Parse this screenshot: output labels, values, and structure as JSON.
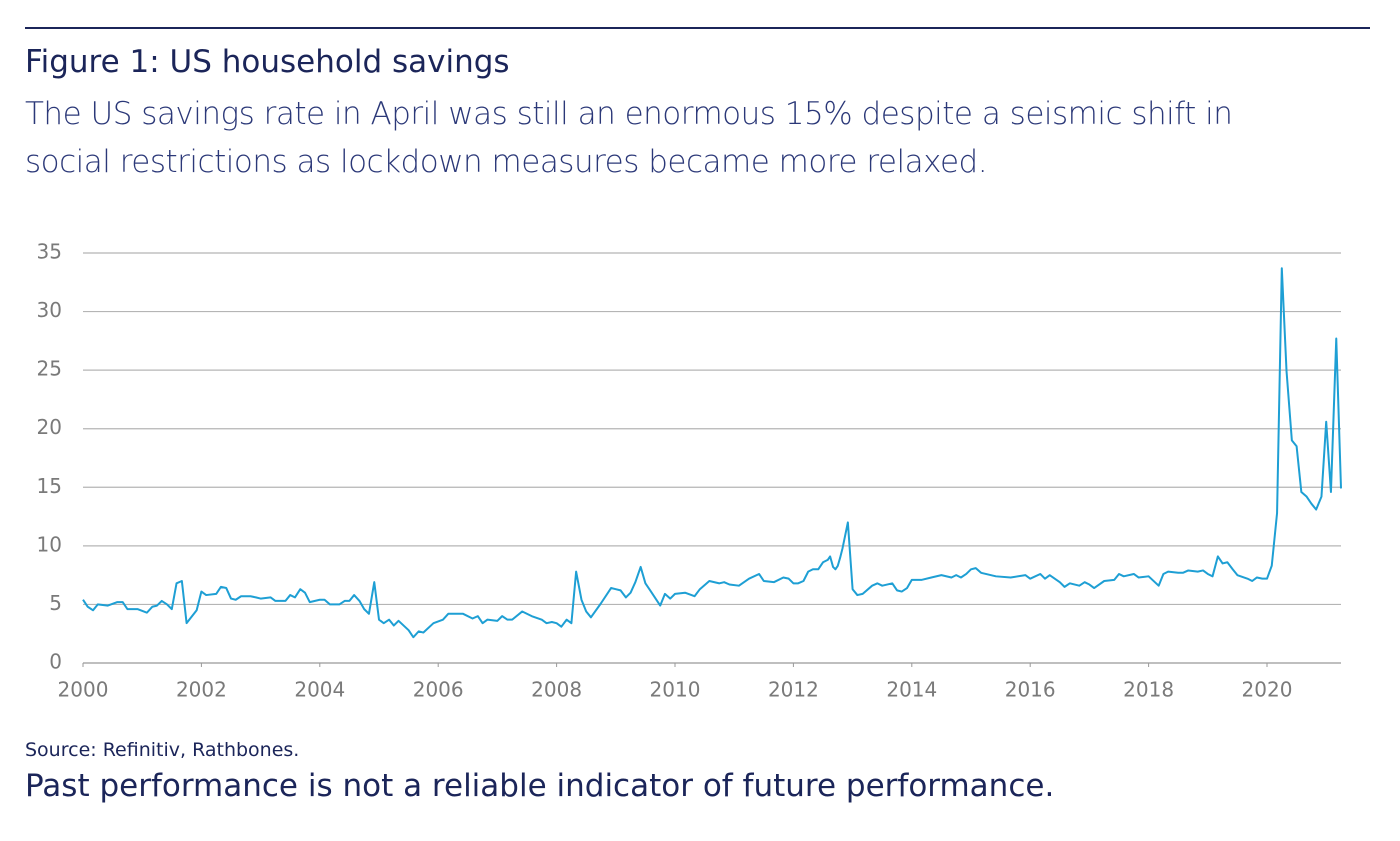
{
  "chart_data": {
    "type": "line",
    "title": "Figure 1: US household savings",
    "subtitle": "The US savings rate in April was still an enormous 15% despite a seismic shift in social restrictions as lockdown measures became more relaxed.",
    "source": "Source: Refinitiv, Rathbones.",
    "disclaimer": "Past performance is not a reliable indicator of future performance.",
    "color": "#1e9fd4",
    "grid": true,
    "xlim": [
      2000,
      2021.25
    ],
    "ylim": [
      0,
      35
    ],
    "xticks": [
      2000,
      2002,
      2004,
      2006,
      2008,
      2010,
      2012,
      2014,
      2016,
      2018,
      2020
    ],
    "yticks": [
      0,
      5,
      10,
      15,
      20,
      25,
      30,
      35
    ],
    "x": [
      2000.0,
      2000.08,
      2000.17,
      2000.25,
      2000.42,
      2000.58,
      2000.67,
      2000.75,
      2000.92,
      2001.08,
      2001.17,
      2001.25,
      2001.33,
      2001.42,
      2001.5,
      2001.58,
      2001.67,
      2001.75,
      2001.92,
      2002.0,
      2002.08,
      2002.25,
      2002.33,
      2002.42,
      2002.5,
      2002.58,
      2002.67,
      2002.83,
      2002.92,
      2003.0,
      2003.17,
      2003.25,
      2003.42,
      2003.5,
      2003.58,
      2003.67,
      2003.75,
      2003.83,
      2004.0,
      2004.08,
      2004.17,
      2004.33,
      2004.42,
      2004.5,
      2004.58,
      2004.67,
      2004.75,
      2004.83,
      2004.92,
      2005.0,
      2005.08,
      2005.17,
      2005.25,
      2005.33,
      2005.5,
      2005.58,
      2005.67,
      2005.75,
      2005.92,
      2006.08,
      2006.17,
      2006.42,
      2006.58,
      2006.67,
      2006.75,
      2006.83,
      2007.0,
      2007.08,
      2007.17,
      2007.25,
      2007.42,
      2007.58,
      2007.75,
      2007.83,
      2007.92,
      2008.0,
      2008.08,
      2008.17,
      2008.25,
      2008.33,
      2008.42,
      2008.5,
      2008.58,
      2008.75,
      2008.92,
      2009.0,
      2009.08,
      2009.17,
      2009.25,
      2009.33,
      2009.42,
      2009.5,
      2009.58,
      2009.75,
      2009.83,
      2009.92,
      2010.0,
      2010.17,
      2010.33,
      2010.42,
      2010.58,
      2010.75,
      2010.83,
      2010.92,
      2011.08,
      2011.25,
      2011.42,
      2011.5,
      2011.67,
      2011.83,
      2011.92,
      2012.0,
      2012.08,
      2012.17,
      2012.25,
      2012.33,
      2012.42,
      2012.5,
      2012.58,
      2012.62,
      2012.67,
      2012.71,
      2012.75,
      2012.79,
      2012.83,
      2012.92,
      2013.0,
      2013.08,
      2013.17,
      2013.33,
      2013.42,
      2013.5,
      2013.67,
      2013.75,
      2013.83,
      2013.92,
      2014.0,
      2014.17,
      2014.33,
      2014.5,
      2014.67,
      2014.75,
      2014.83,
      2014.92,
      2015.0,
      2015.08,
      2015.17,
      2015.42,
      2015.67,
      2015.92,
      2016.0,
      2016.17,
      2016.25,
      2016.33,
      2016.5,
      2016.58,
      2016.67,
      2016.83,
      2016.92,
      2017.0,
      2017.08,
      2017.25,
      2017.42,
      2017.5,
      2017.58,
      2017.75,
      2017.83,
      2018.0,
      2018.17,
      2018.25,
      2018.33,
      2018.5,
      2018.58,
      2018.67,
      2018.83,
      2018.92,
      2019.0,
      2019.08,
      2019.17,
      2019.25,
      2019.33,
      2019.42,
      2019.5,
      2019.67,
      2019.75,
      2019.83,
      2019.92,
      2020.0,
      2020.08,
      2020.17,
      2020.25,
      2020.33,
      2020.42,
      2020.5,
      2020.58,
      2020.67,
      2020.75,
      2020.83,
      2020.92,
      2021.0,
      2021.08,
      2021.17,
      2021.25
    ],
    "values": [
      5.4,
      4.8,
      4.5,
      5.0,
      4.9,
      5.2,
      5.2,
      4.6,
      4.6,
      4.3,
      4.8,
      4.9,
      5.3,
      5.0,
      4.6,
      6.8,
      7.0,
      3.4,
      4.5,
      6.1,
      5.8,
      5.9,
      6.5,
      6.4,
      5.5,
      5.4,
      5.7,
      5.7,
      5.6,
      5.5,
      5.6,
      5.3,
      5.3,
      5.8,
      5.6,
      6.3,
      6.0,
      5.2,
      5.4,
      5.4,
      5.0,
      5.0,
      5.3,
      5.3,
      5.8,
      5.3,
      4.6,
      4.2,
      6.9,
      3.7,
      3.4,
      3.7,
      3.2,
      3.6,
      2.8,
      2.2,
      2.7,
      2.6,
      3.4,
      3.7,
      4.2,
      4.2,
      3.8,
      4.0,
      3.4,
      3.7,
      3.6,
      4.0,
      3.7,
      3.7,
      4.4,
      4.0,
      3.7,
      3.4,
      3.5,
      3.4,
      3.1,
      3.7,
      3.4,
      7.8,
      5.4,
      4.4,
      3.9,
      5.1,
      6.4,
      6.3,
      6.2,
      5.6,
      6.0,
      6.9,
      8.2,
      6.8,
      6.2,
      4.9,
      5.9,
      5.5,
      5.9,
      6.0,
      5.7,
      6.3,
      7.0,
      6.8,
      6.9,
      6.7,
      6.6,
      7.2,
      7.6,
      7.0,
      6.9,
      7.3,
      7.2,
      6.8,
      6.8,
      7.0,
      7.8,
      8.0,
      8.0,
      8.6,
      8.8,
      9.1,
      8.2,
      8.0,
      8.3,
      9.0,
      9.8,
      12.0,
      6.3,
      5.8,
      5.9,
      6.6,
      6.8,
      6.6,
      6.8,
      6.2,
      6.1,
      6.4,
      7.1,
      7.1,
      7.3,
      7.5,
      7.3,
      7.5,
      7.3,
      7.6,
      8.0,
      8.1,
      7.7,
      7.4,
      7.3,
      7.5,
      7.2,
      7.6,
      7.2,
      7.5,
      6.9,
      6.5,
      6.8,
      6.6,
      6.9,
      6.7,
      6.4,
      7.0,
      7.1,
      7.6,
      7.4,
      7.6,
      7.3,
      7.4,
      6.6,
      7.6,
      7.8,
      7.7,
      7.7,
      7.9,
      7.8,
      7.9,
      7.6,
      7.4,
      9.1,
      8.5,
      8.6,
      8.0,
      7.5,
      7.2,
      7.0,
      7.3,
      7.2,
      7.2,
      8.3,
      12.8,
      33.7,
      24.9,
      19.0,
      18.5,
      14.6,
      14.2,
      13.6,
      13.1,
      14.2,
      20.6,
      14.6,
      27.7,
      14.9
    ]
  }
}
